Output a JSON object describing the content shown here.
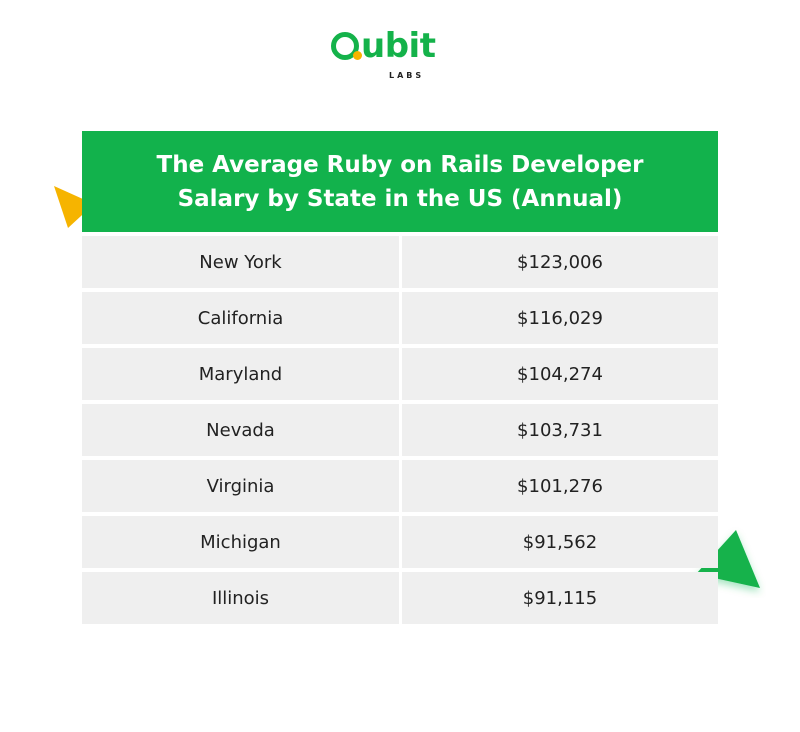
{
  "logo": {
    "word": "ubit",
    "sub": "LABS"
  },
  "colors": {
    "brand_green": "#12b24c",
    "accent_yellow": "#f6b400",
    "row_gray": "#efefef"
  },
  "chart_data": {
    "type": "table",
    "title": "The Average Ruby on Rails Developer Salary by State in the US (Annual)",
    "columns": [
      "",
      ""
    ],
    "rows": [
      {
        "state": "New York",
        "salary": "$123,006"
      },
      {
        "state": "California",
        "salary": "$116,029"
      },
      {
        "state": "Maryland",
        "salary": "$104,274"
      },
      {
        "state": "Nevada",
        "salary": "$103,731"
      },
      {
        "state": "Virginia",
        "salary": "$101,276"
      },
      {
        "state": "Michigan",
        "salary": "$91,562"
      },
      {
        "state": "Illinois",
        "salary": "$91,115"
      }
    ]
  }
}
